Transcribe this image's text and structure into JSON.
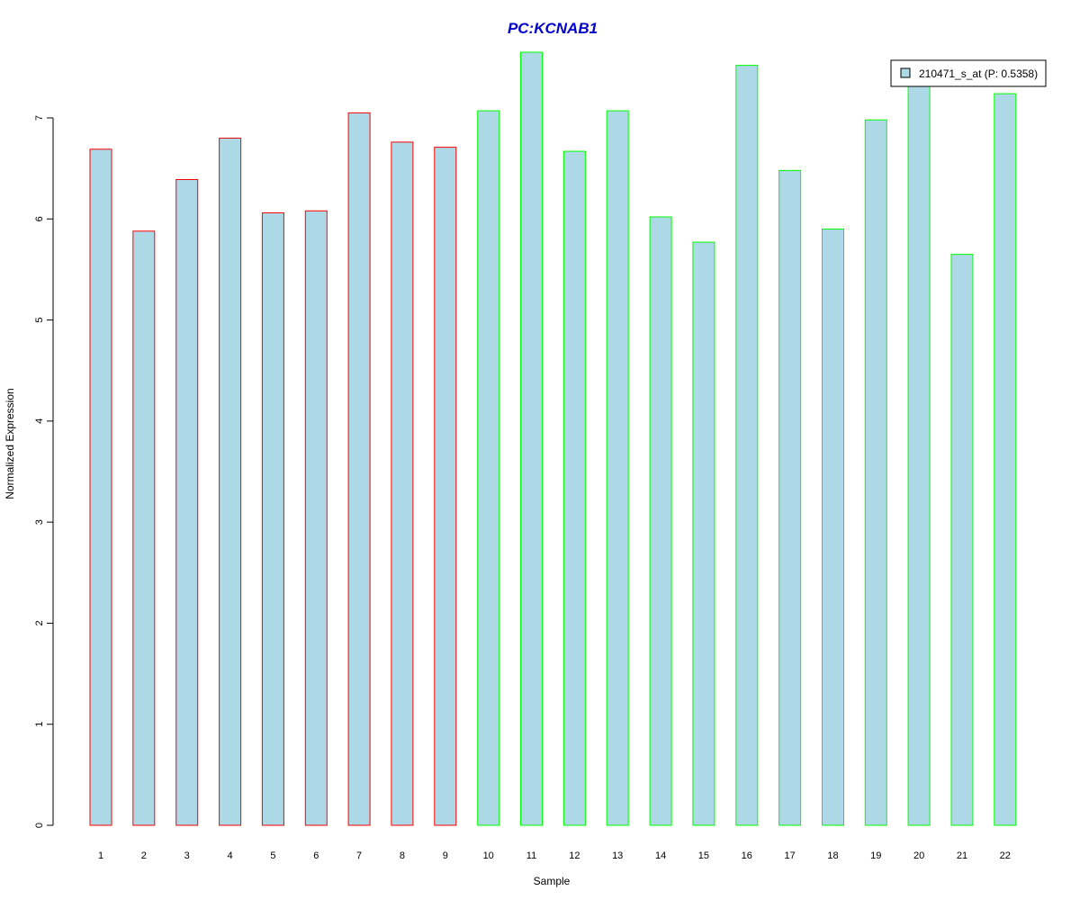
{
  "chart_data": {
    "type": "bar",
    "title": "PC:KCNAB1",
    "xlabel": "Sample",
    "ylabel": "Normalized Expression",
    "ylim": [
      0,
      7.65
    ],
    "yticks": [
      0,
      1,
      2,
      3,
      4,
      5,
      6,
      7
    ],
    "grid": false,
    "legend_position": "top-right",
    "categories": [
      "1",
      "2",
      "3",
      "4",
      "5",
      "6",
      "7",
      "8",
      "9",
      "10",
      "11",
      "12",
      "13",
      "14",
      "15",
      "16",
      "17",
      "18",
      "19",
      "20",
      "21",
      "22"
    ],
    "series": [
      {
        "name": "210471_s_at (P: 0.5358)",
        "values": [
          6.69,
          5.88,
          6.39,
          6.8,
          6.06,
          6.08,
          7.05,
          6.76,
          6.71,
          7.07,
          7.65,
          6.67,
          7.07,
          6.02,
          5.77,
          7.52,
          6.48,
          5.9,
          6.98,
          7.35,
          5.65,
          7.24
        ],
        "fill": "#add8e6"
      }
    ],
    "group_border_colors": [
      "#ff0000",
      "#ff0000",
      "#ff0000",
      "#ff0000",
      "#ff0000",
      "#ff0000",
      "#ff0000",
      "#ff0000",
      "#ff0000",
      "#00ff00",
      "#00ff00",
      "#00ff00",
      "#00ff00",
      "#00ff00",
      "#00ff00",
      "#00ff00",
      "#00ff00",
      "#00ff00",
      "#00ff00",
      "#00ff00",
      "#00ff00",
      "#00ff00"
    ],
    "title_color": "#0000cd"
  }
}
